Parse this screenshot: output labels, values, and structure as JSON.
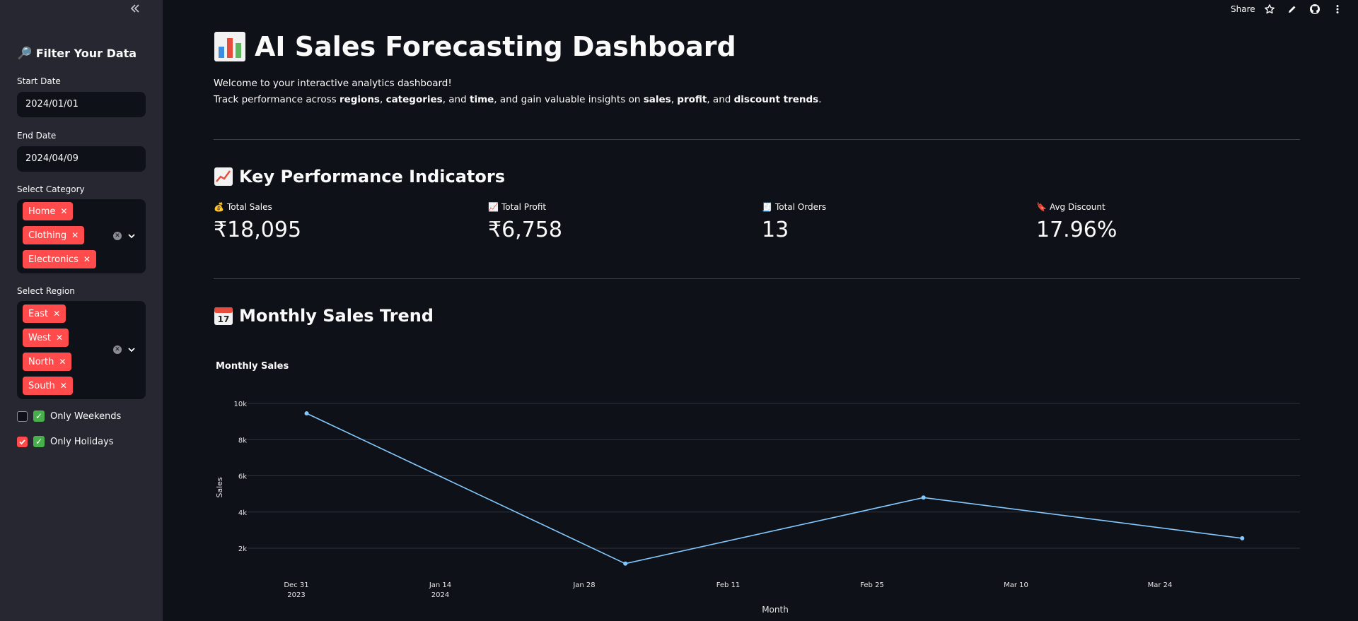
{
  "sidebar": {
    "collapse_icon": "double-chevron-left-icon",
    "title": "Filter Your Data",
    "title_icon": "magnifier-icon",
    "start_date": {
      "label": "Start Date",
      "value": "2024/01/01"
    },
    "end_date": {
      "label": "End Date",
      "value": "2024/04/09"
    },
    "category": {
      "label": "Select Category",
      "tags": [
        "Home",
        "Clothing",
        "Electronics"
      ]
    },
    "region": {
      "label": "Select Region",
      "tags": [
        "East",
        "West",
        "North",
        "South"
      ]
    },
    "checkboxes": [
      {
        "label": "Only Weekends",
        "checked": false
      },
      {
        "label": "Only Holidays",
        "checked": true
      }
    ]
  },
  "toolbar": {
    "share_label": "Share"
  },
  "header": {
    "title": "AI Sales Forecasting Dashboard",
    "title_icon": "bar-chart-icon",
    "intro_line1": "Welcome to your interactive analytics dashboard!",
    "intro_line2": {
      "t1": "Track performance across ",
      "b1": "regions",
      "t2": ", ",
      "b2": "categories",
      "t3": ", and ",
      "b3": "time",
      "t4": ", and gain valuable insights on ",
      "b4": "sales",
      "t5": ", ",
      "b5": "profit",
      "t6": ", and ",
      "b6": "discount trends",
      "t7": "."
    }
  },
  "kpi": {
    "title": "Key Performance Indicators",
    "title_icon": "chart-increasing-icon",
    "metrics": [
      {
        "label": "Total Sales",
        "value": "₹18,095",
        "icon": "money-bag-icon"
      },
      {
        "label": "Total Profit",
        "value": "₹6,758",
        "icon": "chart-increasing-icon"
      },
      {
        "label": "Total Orders",
        "value": "13",
        "icon": "receipt-icon"
      },
      {
        "label": "Avg Discount",
        "value": "17.96%",
        "icon": "bookmark-icon"
      }
    ]
  },
  "trend": {
    "title": "Monthly Sales Trend",
    "title_icon": "calendar-icon"
  },
  "chart_data": {
    "type": "line",
    "title": "Monthly Sales",
    "xlabel": "Month",
    "ylabel": "Sales",
    "x": [
      "2024-01-01",
      "2024-02-01",
      "2024-03-01",
      "2024-04-01"
    ],
    "values": [
      9450,
      1150,
      4800,
      2550
    ],
    "ylim": [
      0,
      10000
    ],
    "yticks": [
      "2k",
      "4k",
      "6k",
      "8k",
      "10k"
    ],
    "xticks": [
      {
        "label": "Dec 31",
        "sub": "2023"
      },
      {
        "label": "Jan 14",
        "sub": "2024"
      },
      {
        "label": "Jan 28",
        "sub": ""
      },
      {
        "label": "Feb 11",
        "sub": ""
      },
      {
        "label": "Feb 25",
        "sub": ""
      },
      {
        "label": "Mar 10",
        "sub": ""
      },
      {
        "label": "Mar 24",
        "sub": ""
      }
    ],
    "line_color": "#83c9ff",
    "grid": true
  }
}
